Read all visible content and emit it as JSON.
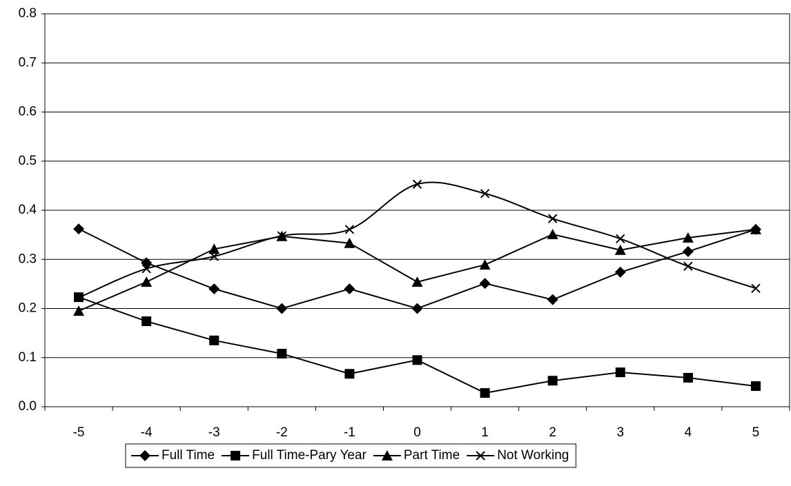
{
  "chart_data": {
    "type": "line",
    "categories": [
      "-5",
      "-4",
      "-3",
      "-2",
      "-1",
      "0",
      "1",
      "2",
      "3",
      "4",
      "5"
    ],
    "series": [
      {
        "name": "Full Time",
        "color": "#000000",
        "marker": "diamond",
        "values": [
          0.362,
          0.293,
          0.24,
          0.2,
          0.24,
          0.2,
          0.251,
          0.218,
          0.274,
          0.316,
          0.361
        ]
      },
      {
        "name": "Full Time-Pary Year",
        "color": "#000000",
        "marker": "square",
        "values": [
          0.223,
          0.174,
          0.135,
          0.108,
          0.067,
          0.095,
          0.028,
          0.053,
          0.07,
          0.059,
          0.042
        ]
      },
      {
        "name": "Part Time",
        "color": "#000000",
        "marker": "triangle",
        "values": [
          0.195,
          0.254,
          0.321,
          0.347,
          0.333,
          0.254,
          0.289,
          0.351,
          0.319,
          0.344,
          0.361
        ]
      },
      {
        "name": "Not Working",
        "color": "#000000",
        "marker": "x",
        "smooth": true,
        "values": [
          0.222,
          0.281,
          0.306,
          0.348,
          0.361,
          0.453,
          0.434,
          0.383,
          0.342,
          0.286,
          0.241
        ]
      }
    ],
    "ylim": [
      0,
      0.8
    ],
    "yticks": [
      {
        "value": 0,
        "label": "0.0"
      },
      0.1,
      0.2,
      0.3,
      0.4,
      0.5,
      0.6,
      0.7,
      0.8
    ],
    "grid": true,
    "legend": "bottom"
  }
}
